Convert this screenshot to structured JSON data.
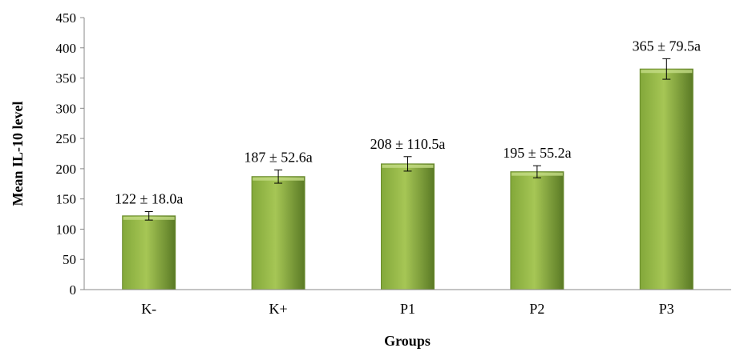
{
  "chart_data": {
    "type": "bar",
    "title": "",
    "xlabel": "Groups",
    "ylabel": "Mean IL-10 level",
    "categories": [
      "K-",
      "K+",
      "P1",
      "P2",
      "P3"
    ],
    "values": [
      122,
      187,
      208,
      195,
      365
    ],
    "error_bars": [
      7,
      11,
      12,
      10,
      17
    ],
    "data_labels": [
      "122 ± 18.0a",
      "187 ± 52.6a",
      "208 ± 110.5a",
      "195 ± 55.2a",
      "365 ± 79.5a"
    ],
    "ylim": [
      0,
      450
    ],
    "yticks": [
      "0",
      "50",
      "100",
      "150",
      "200",
      "250",
      "300",
      "350",
      "400",
      "450"
    ],
    "grid": false,
    "legend": "none",
    "colors": {
      "bar_light": "#a6c655",
      "bar_mid": "#83a83a",
      "bar_dark": "#5a7a25"
    }
  }
}
